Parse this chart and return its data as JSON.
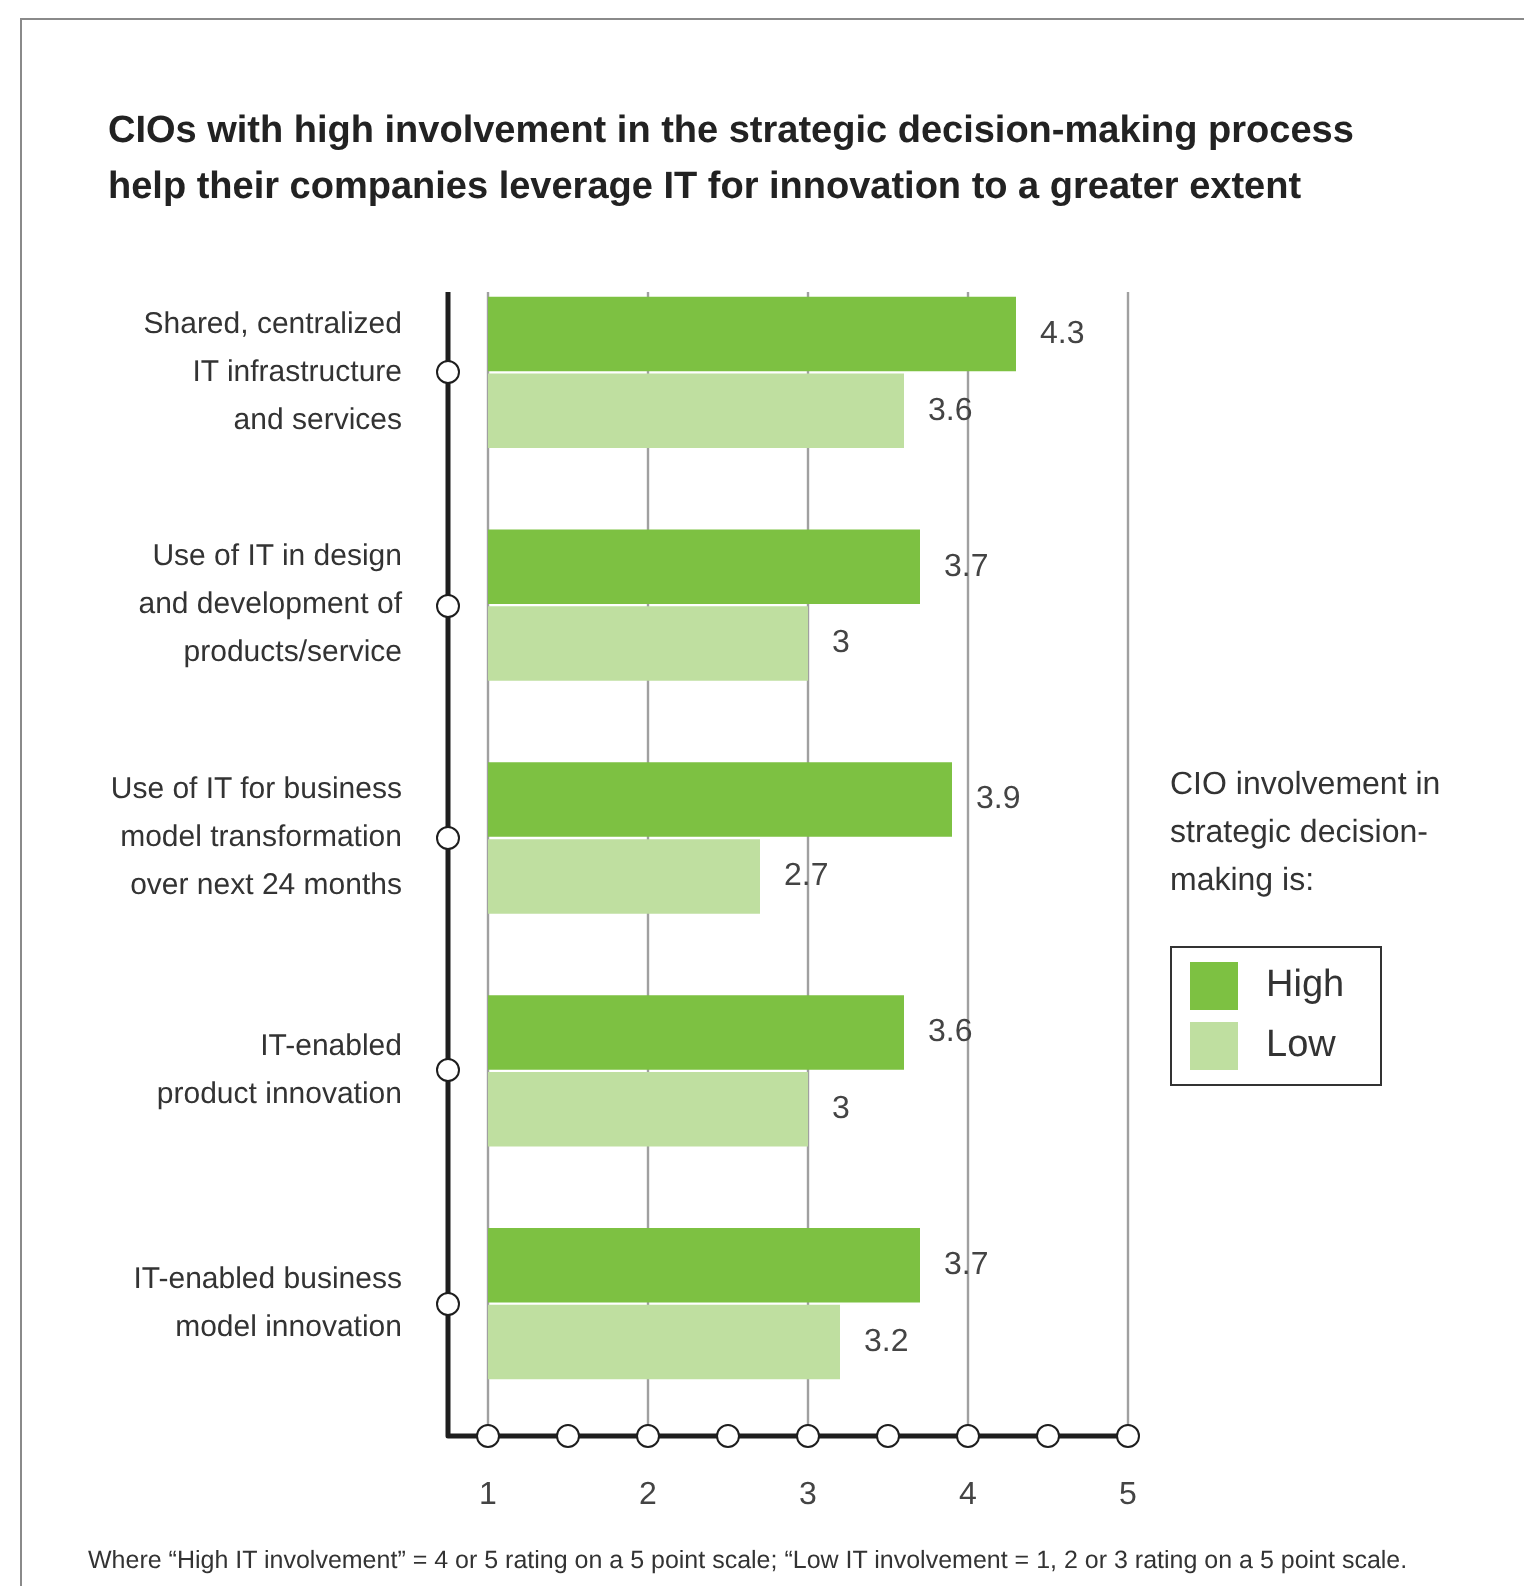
{
  "chart_data": {
    "type": "bar",
    "orientation": "horizontal",
    "title": "CIOs with high involvement in the strategic decision-making process help their companies leverage IT for innovation to a greater extent",
    "categories": [
      "Shared, centralized\nIT infrastructure\nand services",
      "Use of IT in design\nand development of\nproducts/service",
      "Use of IT for business\nmodel transformation\nover next 24 months",
      "IT-enabled\nproduct innovation",
      "IT-enabled business\nmodel innovation"
    ],
    "series": [
      {
        "name": "High",
        "color": "#7dc142",
        "values": [
          4.3,
          3.7,
          3.9,
          3.6,
          3.7
        ]
      },
      {
        "name": "Low",
        "color": "#bfdfa0",
        "values": [
          3.6,
          3,
          2.7,
          3,
          3.2
        ]
      }
    ],
    "xlim": [
      1,
      5
    ],
    "xticks": [
      1,
      2,
      3,
      4,
      5
    ],
    "grid": "x",
    "legend": "right",
    "legend_title": "CIO involvement in strategic decision-making is:",
    "data_labels": true,
    "annotations": [
      "Where “High IT involvement” = 4 or 5 rating on a 5 point scale; “Low IT involvement = 1, 2 or 3 rating on a 5 point scale."
    ]
  }
}
